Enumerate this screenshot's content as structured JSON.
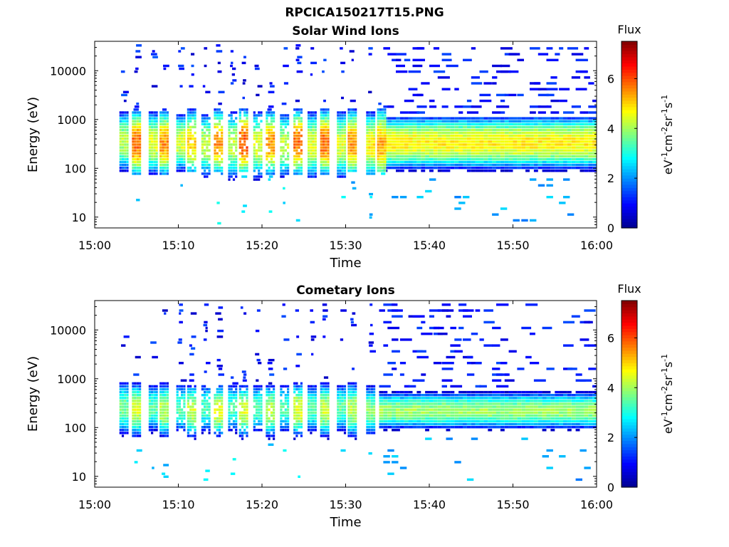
{
  "figure_title": "RPCICA150217T15.PNG",
  "colors": {
    "jet": [
      "#00008f",
      "#0000ff",
      "#0080ff",
      "#00ffff",
      "#80ff80",
      "#ffff00",
      "#ff8000",
      "#ff0000",
      "#800000"
    ]
  },
  "chart_data": [
    {
      "type": "heatmap",
      "title": "Solar Wind Ions",
      "xlabel": "Time",
      "ylabel": "Energy (eV)",
      "x_ticks": [
        "15:00",
        "15:10",
        "15:20",
        "15:30",
        "15:40",
        "15:50",
        "16:00"
      ],
      "xlim_minutes": [
        0,
        60
      ],
      "y_scale": "log",
      "ylim": [
        6,
        40000
      ],
      "y_ticks": [
        10,
        100,
        1000,
        10000
      ],
      "y_tick_labels": [
        "10",
        "100",
        "1000",
        "10000"
      ],
      "colorbar": {
        "title": "Flux",
        "unit": "eV-1cm-2sr-1s-1",
        "range": [
          0,
          7.5
        ],
        "ticks": [
          0,
          2,
          4,
          6
        ]
      },
      "scans": [
        {
          "t": 3.5,
          "lo": 70,
          "hi": 1300,
          "peak": 350,
          "max": 4.2,
          "sparse": false
        },
        {
          "t": 5.0,
          "lo": 75,
          "hi": 1400,
          "peak": 320,
          "max": 5.8,
          "sparse": false
        },
        {
          "t": 7.0,
          "lo": 60,
          "hi": 1300,
          "peak": 330,
          "max": 4.5,
          "sparse": false
        },
        {
          "t": 8.3,
          "lo": 80,
          "hi": 1400,
          "peak": 320,
          "max": 5.5,
          "sparse": false
        },
        {
          "t": 10.3,
          "lo": 70,
          "hi": 1200,
          "peak": 340,
          "max": 4.5,
          "sparse": false
        },
        {
          "t": 11.6,
          "lo": 85,
          "hi": 1500,
          "peak": 330,
          "max": 5.0,
          "sparse": true
        },
        {
          "t": 13.3,
          "lo": 60,
          "hi": 1200,
          "peak": 300,
          "max": 4.3,
          "sparse": true
        },
        {
          "t": 14.8,
          "lo": 80,
          "hi": 1500,
          "peak": 330,
          "max": 5.5,
          "sparse": true
        },
        {
          "t": 16.5,
          "lo": 60,
          "hi": 1300,
          "peak": 300,
          "max": 4.3,
          "sparse": true
        },
        {
          "t": 17.8,
          "lo": 85,
          "hi": 1500,
          "peak": 330,
          "max": 6.0,
          "sparse": true
        },
        {
          "t": 19.5,
          "lo": 60,
          "hi": 1300,
          "peak": 300,
          "max": 4.5,
          "sparse": true
        },
        {
          "t": 21.0,
          "lo": 80,
          "hi": 1400,
          "peak": 320,
          "max": 5.5,
          "sparse": true
        },
        {
          "t": 22.7,
          "lo": 60,
          "hi": 1200,
          "peak": 300,
          "max": 4.3,
          "sparse": true
        },
        {
          "t": 24.3,
          "lo": 80,
          "hi": 1500,
          "peak": 330,
          "max": 5.8,
          "sparse": true
        },
        {
          "t": 26.0,
          "lo": 65,
          "hi": 1300,
          "peak": 300,
          "max": 4.5,
          "sparse": false
        },
        {
          "t": 27.5,
          "lo": 80,
          "hi": 1500,
          "peak": 330,
          "max": 5.8,
          "sparse": false
        },
        {
          "t": 29.5,
          "lo": 70,
          "hi": 1300,
          "peak": 300,
          "max": 4.5,
          "sparse": false
        },
        {
          "t": 30.8,
          "lo": 85,
          "hi": 1500,
          "peak": 320,
          "max": 5.5,
          "sparse": false
        },
        {
          "t": 33.0,
          "lo": 80,
          "hi": 1300,
          "peak": 300,
          "max": 4.8,
          "sparse": false
        },
        {
          "t": 34.3,
          "lo": 90,
          "hi": 1600,
          "peak": 300,
          "max": 5.3,
          "sparse": false
        }
      ],
      "band": [
        {
          "t0": 34.5,
          "t1": 60.0,
          "lo": 90,
          "hi": 1100,
          "peak": 330,
          "max": 4.8
        }
      ]
    },
    {
      "type": "heatmap",
      "title": "Cometary Ions",
      "xlabel": "Time",
      "ylabel": "Energy (eV)",
      "x_ticks": [
        "15:00",
        "15:10",
        "15:20",
        "15:30",
        "15:40",
        "15:50",
        "16:00"
      ],
      "xlim_minutes": [
        0,
        60
      ],
      "y_scale": "log",
      "ylim": [
        6,
        40000
      ],
      "y_ticks": [
        10,
        100,
        1000,
        10000
      ],
      "y_tick_labels": [
        "10",
        "100",
        "1000",
        "10000"
      ],
      "colorbar": {
        "title": "Flux",
        "unit": "eV-1cm-2sr-1s-1",
        "range": [
          0,
          7.5
        ],
        "ticks": [
          0,
          2,
          4,
          6
        ]
      },
      "scans": [
        {
          "t": 3.5,
          "lo": 70,
          "hi": 800,
          "peak": 250,
          "max": 3.6,
          "sparse": false
        },
        {
          "t": 5.0,
          "lo": 60,
          "hi": 750,
          "peak": 230,
          "max": 4.4,
          "sparse": false
        },
        {
          "t": 7.0,
          "lo": 70,
          "hi": 700,
          "peak": 250,
          "max": 3.5,
          "sparse": false
        },
        {
          "t": 8.3,
          "lo": 55,
          "hi": 750,
          "peak": 230,
          "max": 4.2,
          "sparse": false
        },
        {
          "t": 10.3,
          "lo": 70,
          "hi": 700,
          "peak": 250,
          "max": 3.5,
          "sparse": true
        },
        {
          "t": 11.6,
          "lo": 50,
          "hi": 700,
          "peak": 220,
          "max": 4.3,
          "sparse": true
        },
        {
          "t": 13.3,
          "lo": 70,
          "hi": 700,
          "peak": 250,
          "max": 3.4,
          "sparse": true
        },
        {
          "t": 14.8,
          "lo": 50,
          "hi": 700,
          "peak": 220,
          "max": 4.5,
          "sparse": true
        },
        {
          "t": 16.5,
          "lo": 70,
          "hi": 700,
          "peak": 250,
          "max": 3.4,
          "sparse": true
        },
        {
          "t": 17.8,
          "lo": 50,
          "hi": 700,
          "peak": 220,
          "max": 4.5,
          "sparse": true
        },
        {
          "t": 19.5,
          "lo": 70,
          "hi": 700,
          "peak": 250,
          "max": 3.4,
          "sparse": true
        },
        {
          "t": 21.0,
          "lo": 55,
          "hi": 700,
          "peak": 220,
          "max": 4.3,
          "sparse": true
        },
        {
          "t": 22.7,
          "lo": 70,
          "hi": 700,
          "peak": 250,
          "max": 3.4,
          "sparse": true
        },
        {
          "t": 24.3,
          "lo": 55,
          "hi": 750,
          "peak": 230,
          "max": 4.5,
          "sparse": true
        },
        {
          "t": 26.0,
          "lo": 70,
          "hi": 700,
          "peak": 250,
          "max": 3.5,
          "sparse": false
        },
        {
          "t": 27.5,
          "lo": 55,
          "hi": 750,
          "peak": 230,
          "max": 4.3,
          "sparse": false
        },
        {
          "t": 29.5,
          "lo": 70,
          "hi": 700,
          "peak": 250,
          "max": 3.5,
          "sparse": false
        },
        {
          "t": 30.8,
          "lo": 60,
          "hi": 750,
          "peak": 230,
          "max": 4.2,
          "sparse": false
        },
        {
          "t": 33.0,
          "lo": 80,
          "hi": 650,
          "peak": 220,
          "max": 3.8,
          "sparse": false
        }
      ],
      "band": [
        {
          "t0": 34.0,
          "t1": 60.0,
          "lo": 90,
          "hi": 500,
          "peak": 220,
          "max": 4.0
        }
      ]
    }
  ]
}
